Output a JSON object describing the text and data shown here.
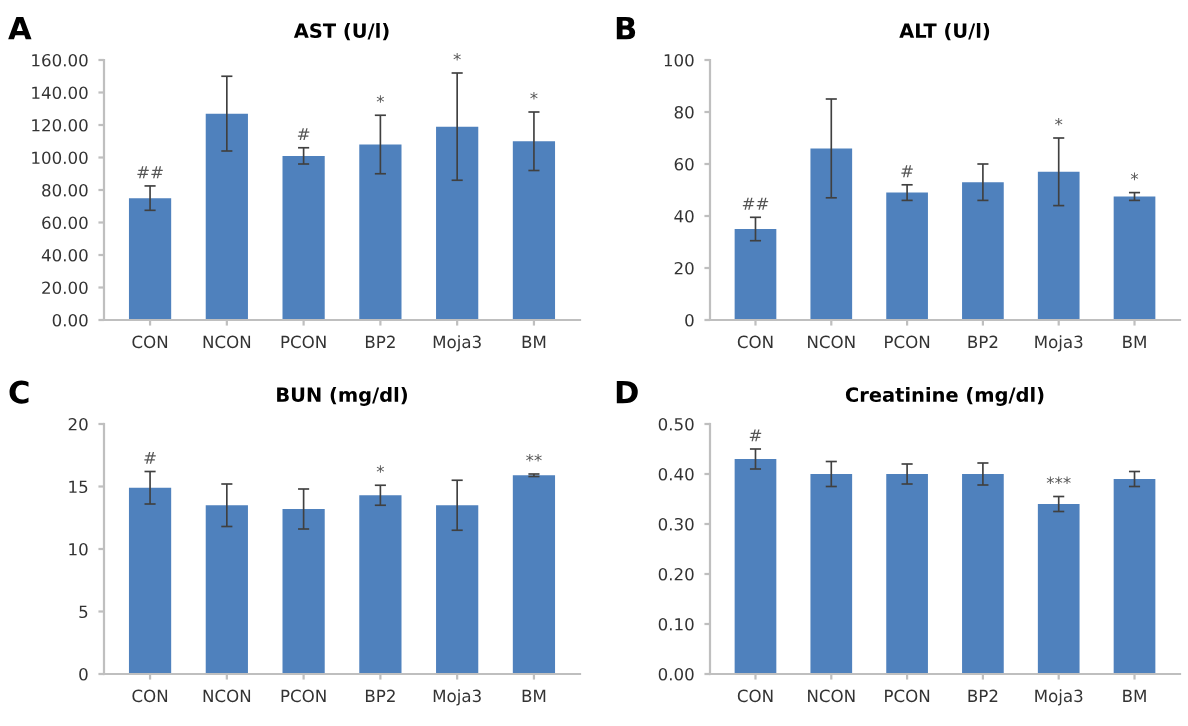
{
  "chart_data": [
    {
      "type": "bar",
      "title": "AST (U/l)",
      "categories": [
        "CON",
        "NCON",
        "PCON",
        "BP2",
        "Moja3",
        "BM"
      ],
      "color": "#4f81bd",
      "values": [
        75,
        127,
        101,
        108,
        119,
        110
      ],
      "errors": [
        7.5,
        23,
        5,
        18,
        33,
        18
      ],
      "ylim": [
        0,
        160
      ],
      "yticks": [
        {
          "value": 0,
          "label": "0.00"
        },
        {
          "value": 20,
          "label": "20.00"
        },
        {
          "value": 40,
          "label": "40.00"
        },
        {
          "value": 60,
          "label": "60.00"
        },
        {
          "value": 80,
          "label": "80.00"
        },
        {
          "value": 100,
          "label": "100.00"
        },
        {
          "value": 120,
          "label": "120.00"
        },
        {
          "value": 140,
          "label": "140.00"
        },
        {
          "value": 160,
          "label": "160.00"
        }
      ],
      "grid": false,
      "annotations": [
        "A",
        {
          "text": "##",
          "x": "CON",
          "y": 82.5
        },
        {
          "text": "#",
          "x": "PCON",
          "y": 106
        },
        {
          "text": "*",
          "x": "BP2",
          "y": 126
        },
        {
          "text": "*",
          "x": "Moja3",
          "y": 152
        },
        {
          "text": "*",
          "x": "BM",
          "y": 128
        }
      ]
    },
    {
      "type": "bar",
      "title": "ALT (U/l)",
      "categories": [
        "CON",
        "NCON",
        "PCON",
        "BP2",
        "Moja3",
        "BM"
      ],
      "color": "#4f81bd",
      "values": [
        35,
        66,
        49,
        53,
        57,
        47.5
      ],
      "errors": [
        4.5,
        19,
        3,
        7,
        13,
        1.5
      ],
      "ylim": [
        0,
        100
      ],
      "yticks": [
        0,
        20,
        40,
        60,
        80,
        100
      ],
      "grid": false,
      "annotations": [
        "B",
        {
          "text": "##",
          "x": "CON",
          "y": 39.5
        },
        {
          "text": "#",
          "x": "PCON",
          "y": 52
        },
        {
          "text": "*",
          "x": "Moja3",
          "y": 70
        },
        {
          "text": "*",
          "x": "BM",
          "y": 49
        }
      ]
    },
    {
      "type": "bar",
      "title": "BUN (mg/dl)",
      "categories": [
        "CON",
        "NCON",
        "PCON",
        "BP2",
        "Moja3",
        "BM"
      ],
      "color": "#4f81bd",
      "values": [
        14.9,
        13.5,
        13.2,
        14.3,
        13.5,
        15.9
      ],
      "errors": [
        1.3,
        1.7,
        1.6,
        0.8,
        2,
        0.1
      ],
      "ylim": [
        0,
        20
      ],
      "yticks": [
        0,
        5,
        10,
        15,
        20
      ],
      "grid": false,
      "annotations": [
        "C",
        {
          "text": "#",
          "x": "CON",
          "y": 16.2
        },
        {
          "text": "*",
          "x": "BP2",
          "y": 15.1
        },
        {
          "text": "**",
          "x": "BM",
          "y": 16
        }
      ]
    },
    {
      "type": "bar",
      "title": "Creatinine (mg/dl)",
      "categories": [
        "CON",
        "NCON",
        "PCON",
        "BP2",
        "Moja3",
        "BM"
      ],
      "color": "#4f81bd",
      "values": [
        0.43,
        0.4,
        0.4,
        0.4,
        0.34,
        0.39
      ],
      "errors": [
        0.02,
        0.025,
        0.02,
        0.022,
        0.015,
        0.015
      ],
      "ylim": [
        0,
        0.5
      ],
      "yticks": [
        {
          "value": 0,
          "label": "0.00"
        },
        {
          "value": 0.1,
          "label": "0.10"
        },
        {
          "value": 0.2,
          "label": "0.20"
        },
        {
          "value": 0.3,
          "label": "0.30"
        },
        {
          "value": 0.4,
          "label": "0.40"
        },
        {
          "value": 0.5,
          "label": "0.50"
        }
      ],
      "grid": false,
      "annotations": [
        "D",
        {
          "text": "#",
          "x": "CON",
          "y": 0.45
        },
        {
          "text": "***",
          "x": "Moja3",
          "y": 0.355
        }
      ]
    }
  ]
}
